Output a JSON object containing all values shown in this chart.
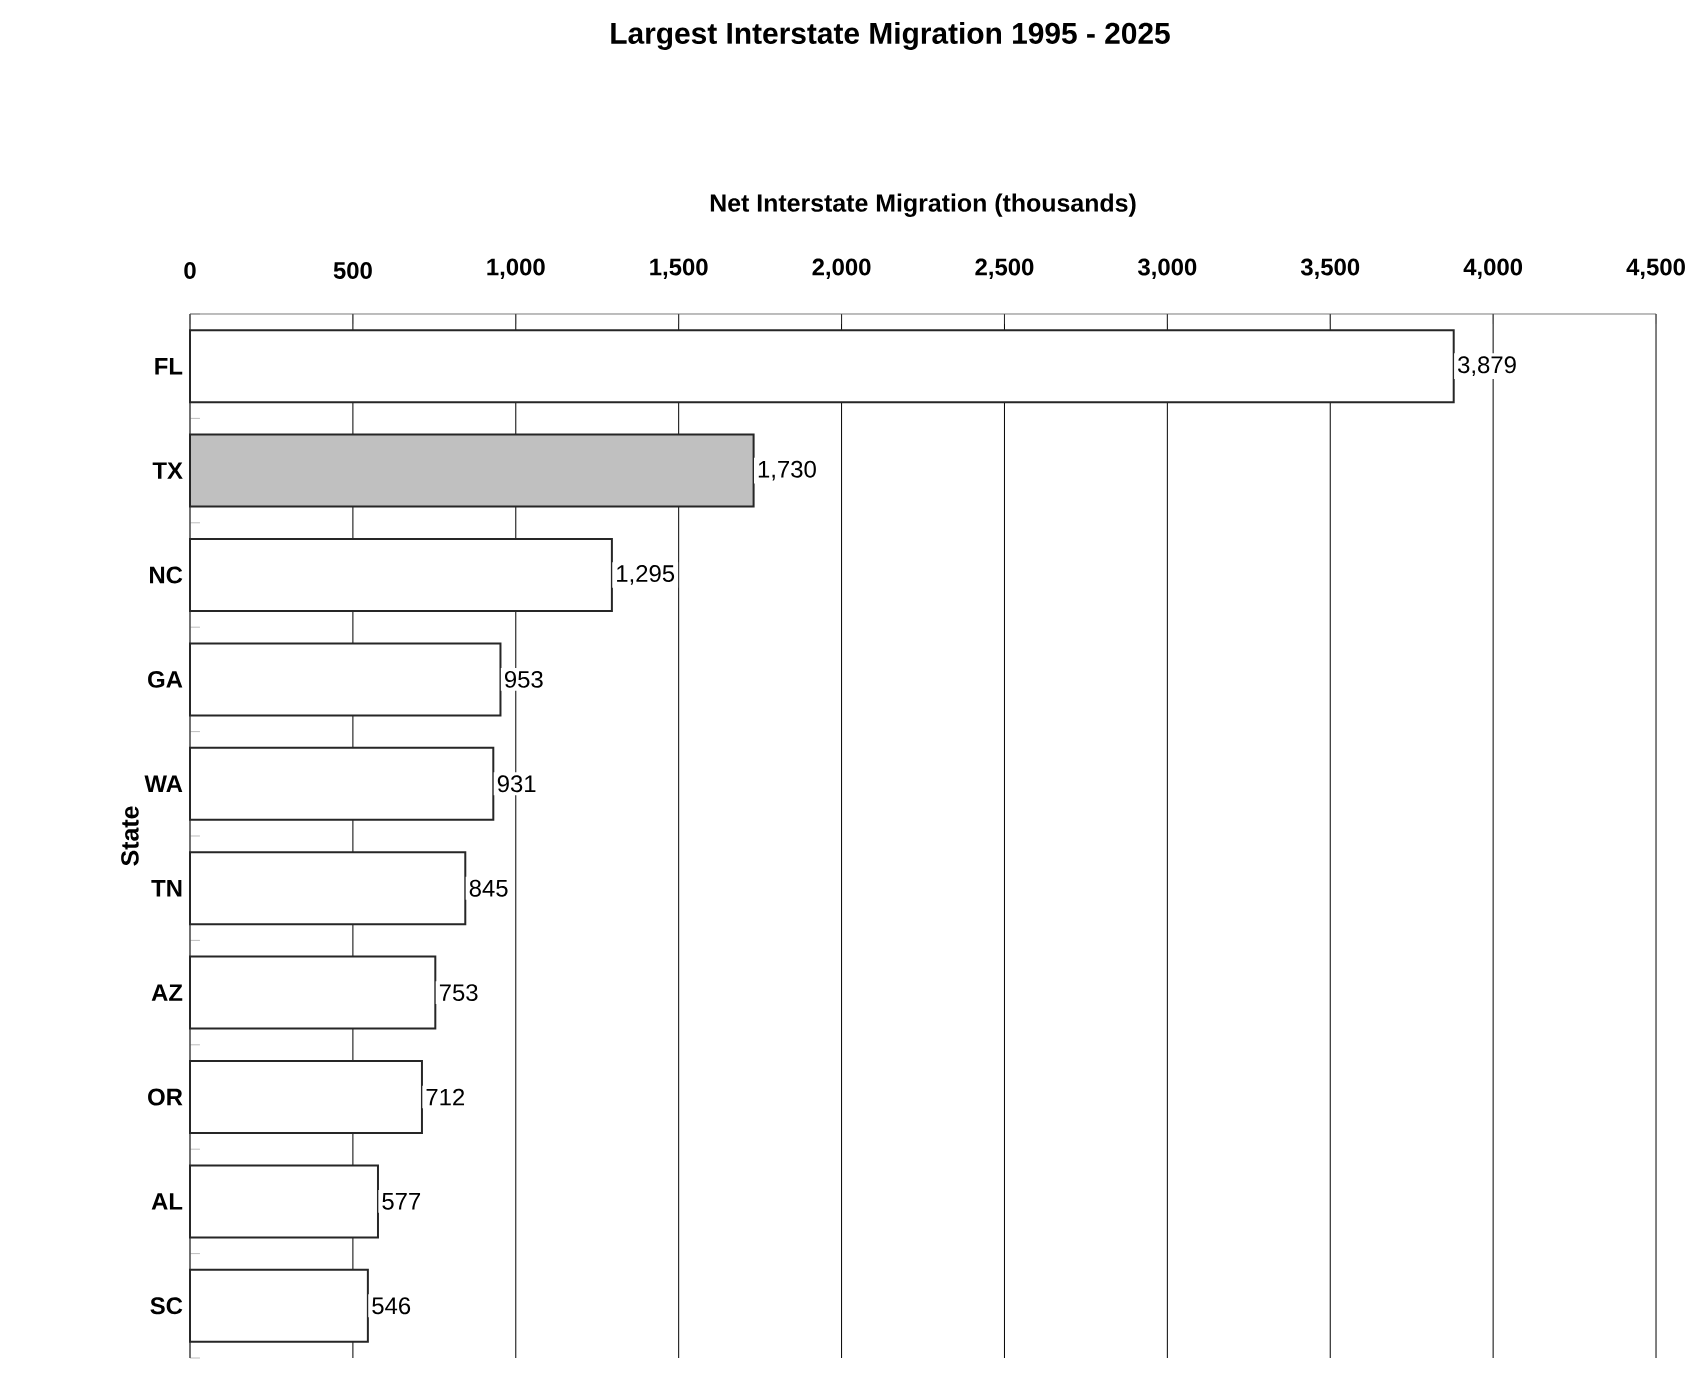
{
  "chart_data": {
    "type": "bar",
    "orientation": "horizontal",
    "title": "Largest Interstate Migration 1995 - 2025",
    "xlabel": "Net Interstate Migration (thousands)",
    "ylabel": "State",
    "categories": [
      "FL",
      "TX",
      "NC",
      "GA",
      "WA",
      "TN",
      "AZ",
      "OR",
      "AL",
      "SC"
    ],
    "values": [
      3879,
      1730,
      1295,
      953,
      931,
      845,
      753,
      712,
      577,
      546
    ],
    "colors": [
      "#ffffff",
      "#c0c0c0",
      "#ffffff",
      "#ffffff",
      "#ffffff",
      "#ffffff",
      "#ffffff",
      "#ffffff",
      "#ffffff",
      "#ffffff"
    ],
    "value_labels": [
      "3,879",
      "1,730",
      "1,295",
      "953",
      "931",
      "845",
      "753",
      "712",
      "577",
      "546"
    ],
    "xlim": [
      0,
      4500
    ],
    "xticks": [
      0,
      500,
      {
        "value": 1000,
        "label": "1,000"
      },
      {
        "value": 1500,
        "label": "1,500"
      },
      {
        "value": 2000,
        "label": "2,000"
      },
      {
        "value": 2500,
        "label": "2,500"
      },
      {
        "value": 3000,
        "label": "3,000"
      },
      {
        "value": 3500,
        "label": "3,500"
      },
      {
        "value": 4000,
        "label": "4,000"
      },
      {
        "value": 4500,
        "label": "4,500"
      }
    ],
    "grid": "x"
  }
}
